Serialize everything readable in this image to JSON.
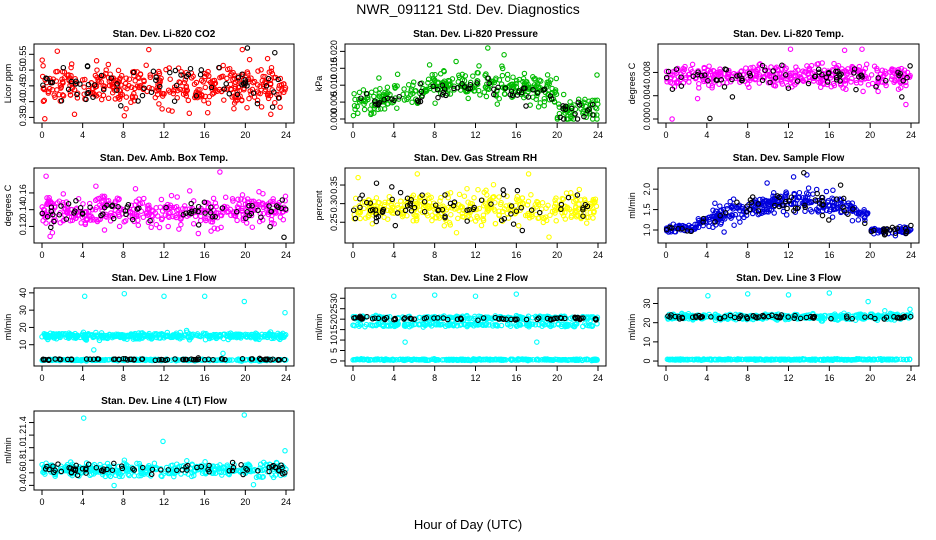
{
  "title": "NWR_091121  Std. Dev. Diagnostics",
  "xlabel": "Hour of Day (UTC)",
  "chart_data": [
    {
      "type": "scatter",
      "title": "Stan. Dev. Li-820 CO2",
      "ylabel": "Licor ppm",
      "xticks": [
        "0",
        "4",
        "8",
        "12",
        "16",
        "20",
        "24"
      ],
      "yticks": [
        "0.35",
        "0.40",
        "0.45",
        "0.50",
        "0.55"
      ],
      "xlim": [
        0,
        24
      ],
      "ylim": [
        0.345,
        0.57
      ],
      "series": [
        {
          "color": "#ff0000",
          "kind": "band",
          "center": 0.45,
          "spread": 0.04,
          "n": 380,
          "outliers": [
            [
              1.5,
              0.56
            ],
            [
              3.2,
              0.36
            ],
            [
              8.1,
              0.355
            ],
            [
              10.5,
              0.565
            ],
            [
              12.8,
              0.37
            ],
            [
              16.3,
              0.365
            ],
            [
              19.7,
              0.565
            ],
            [
              22.5,
              0.36
            ]
          ]
        },
        {
          "color": "#000000",
          "kind": "band",
          "center": 0.45,
          "spread": 0.035,
          "n": 70,
          "outliers": [
            [
              20.2,
              0.57
            ],
            [
              22.9,
              0.555
            ]
          ]
        }
      ]
    },
    {
      "type": "scatter",
      "title": "Stan. Dev. Li-820 Pressure",
      "ylabel": "kPa",
      "xticks": [
        "0",
        "4",
        "8",
        "12",
        "16",
        "20",
        "24"
      ],
      "yticks": [
        "0.000",
        "0.005",
        "0.010",
        "0.015",
        "0.020"
      ],
      "xlim": [
        0,
        24
      ],
      "ylim": [
        0,
        0.021
      ],
      "series": [
        {
          "color": "#00bb00",
          "kind": "hump",
          "base": 0.004,
          "peak": 0.0105,
          "center": 13,
          "width": 9,
          "spread": 0.0028,
          "n": 380,
          "outliers": [
            [
              7.5,
              0.016
            ],
            [
              13.2,
              0.021
            ],
            [
              14.8,
              0.019
            ],
            [
              23.9,
              0.013
            ],
            [
              10.1,
              0.017
            ]
          ]
        },
        {
          "color": "#000000",
          "kind": "hump",
          "base": 0.004,
          "peak": 0.0095,
          "center": 13,
          "width": 9,
          "spread": 0.0022,
          "n": 70,
          "outliers": [
            [
              20.3,
              0.0005
            ],
            [
              23.5,
              0.0012
            ]
          ]
        }
      ]
    },
    {
      "type": "scatter",
      "title": "Stan. Dev. Li-820 Temp.",
      "ylabel": "degrees C",
      "xticks": [
        "0",
        "4",
        "8",
        "12",
        "16",
        "20",
        "24"
      ],
      "yticks": [
        "0.000",
        "0.004",
        "0.008"
      ],
      "xlim": [
        0,
        24
      ],
      "ylim": [
        0,
        0.0122
      ],
      "series": [
        {
          "color": "#ff00ff",
          "kind": "band",
          "center": 0.0073,
          "spread": 0.0013,
          "n": 380,
          "outliers": [
            [
              0.6,
              0.0
            ],
            [
              3.1,
              0.0035
            ],
            [
              12.2,
              0.012
            ],
            [
              17.5,
              0.0118
            ],
            [
              19.2,
              0.012
            ],
            [
              23.5,
              0.0025
            ]
          ]
        },
        {
          "color": "#000000",
          "kind": "band",
          "center": 0.0072,
          "spread": 0.0012,
          "n": 70,
          "outliers": [
            [
              4.3,
              0.0001
            ],
            [
              6.5,
              0.0038
            ],
            [
              23.1,
              0.0038
            ]
          ]
        }
      ]
    },
    {
      "type": "scatter",
      "title": "Stan. Dev. Amb. Box Temp.",
      "ylabel": "degrees C",
      "xticks": [
        "0",
        "4",
        "8",
        "12",
        "16",
        "20",
        "24"
      ],
      "yticks": [
        "0.12",
        "0.14",
        "0.16"
      ],
      "xlim": [
        0,
        24
      ],
      "ylim": [
        0.105,
        0.185
      ],
      "series": [
        {
          "color": "#ff00ff",
          "kind": "band",
          "center": 0.138,
          "spread": 0.012,
          "n": 380,
          "outliers": [
            [
              0.4,
              0.18
            ],
            [
              17.5,
              0.185
            ],
            [
              9.2,
              0.165
            ],
            [
              5.3,
              0.168
            ]
          ]
        },
        {
          "color": "#000000",
          "kind": "band",
          "center": 0.137,
          "spread": 0.01,
          "n": 70,
          "outliers": [
            [
              23.8,
              0.107
            ]
          ]
        }
      ]
    },
    {
      "type": "scatter",
      "title": "Stan. Dev. Gas Stream RH",
      "ylabel": "percent",
      "xticks": [
        "0",
        "4",
        "8",
        "12",
        "16",
        "20",
        "24"
      ],
      "yticks": [
        "0.25",
        "0.30",
        "0.35"
      ],
      "xlim": [
        0,
        24
      ],
      "ylim": [
        0.205,
        0.385
      ],
      "series": [
        {
          "color": "#ffff00",
          "kind": "band",
          "center": 0.285,
          "spread": 0.028,
          "n": 380,
          "outliers": [
            [
              6.3,
              0.38
            ],
            [
              17.2,
              0.38
            ],
            [
              0.5,
              0.37
            ],
            [
              19.2,
              0.21
            ]
          ]
        },
        {
          "color": "#000000",
          "kind": "band",
          "center": 0.29,
          "spread": 0.025,
          "n": 70,
          "outliers": [
            [
              2.3,
              0.355
            ],
            [
              3.8,
              0.345
            ],
            [
              16.1,
              0.335
            ]
          ]
        }
      ]
    },
    {
      "type": "scatter",
      "title": "Stan. Dev. Sample Flow",
      "ylabel": "ml/min",
      "xticks": [
        "0",
        "4",
        "8",
        "12",
        "16",
        "20",
        "24"
      ],
      "yticks": [
        "1.0",
        "1.5",
        "2.0"
      ],
      "xlim": [
        0,
        24
      ],
      "ylim": [
        0.78,
        2.42
      ],
      "series": [
        {
          "color": "#0000dd",
          "kind": "flow",
          "n": 380,
          "outliers": [
            [
              13.8,
              2.35
            ],
            [
              12.5,
              2.3
            ],
            [
              9.9,
              2.15
            ]
          ]
        },
        {
          "color": "#000000",
          "kind": "flow",
          "n": 70,
          "outliers": [
            [
              13.5,
              2.4
            ],
            [
              17.1,
              2.1
            ]
          ]
        }
      ]
    },
    {
      "type": "scatter",
      "title": "Stan. Dev. Line 1 Flow",
      "ylabel": "ml/min",
      "xticks": [
        "0",
        "4",
        "8",
        "12",
        "16",
        "20",
        "24"
      ],
      "yticks": [
        "10",
        "20",
        "30",
        "40"
      ],
      "xlim": [
        0,
        24
      ],
      "ylim": [
        0,
        40.5
      ],
      "series": [
        {
          "color": "#00ffff",
          "kind": "band",
          "center": 15,
          "spread": 1.2,
          "n": 400,
          "outliers": [
            [
              4.2,
              38
            ],
            [
              8.1,
              39.5
            ],
            [
              12.0,
              38
            ],
            [
              16.0,
              38
            ],
            [
              19.9,
              35
            ],
            [
              23.9,
              28.5
            ],
            [
              5.1,
              7
            ],
            [
              17.8,
              5
            ]
          ]
        },
        {
          "color": "#00ffff",
          "kind": "band",
          "center": 1.2,
          "spread": 0.3,
          "n": 300,
          "outliers": []
        },
        {
          "color": "#000000",
          "kind": "band",
          "center": 1.5,
          "spread": 0.3,
          "n": 70,
          "outliers": []
        }
      ]
    },
    {
      "type": "scatter",
      "title": "Stan. Dev. Line 2 Flow",
      "ylabel": "ml/min",
      "xticks": [
        "0",
        "4",
        "8",
        "12",
        "16",
        "20",
        "24"
      ],
      "yticks": [
        "0",
        "5",
        "10",
        "15",
        "20",
        "25",
        "30"
      ],
      "xlim": [
        0,
        24
      ],
      "ylim": [
        -0.5,
        33
      ],
      "series": [
        {
          "color": "#00ffff",
          "kind": "twin",
          "center": 19.5,
          "spread": 2.2,
          "n": 400,
          "outliers": [
            [
              4.0,
              31
            ],
            [
              8.0,
              31.5
            ],
            [
              12.0,
              31
            ],
            [
              16.0,
              32
            ],
            [
              5.1,
              9
            ],
            [
              18.0,
              9
            ]
          ]
        },
        {
          "color": "#00ffff",
          "kind": "band",
          "center": 0.6,
          "spread": 0.2,
          "n": 300,
          "outliers": []
        },
        {
          "color": "#000000",
          "kind": "band",
          "center": 20.2,
          "spread": 0.6,
          "n": 70,
          "outliers": []
        }
      ]
    },
    {
      "type": "scatter",
      "title": "Stan. Dev. Line 3 Flow",
      "ylabel": "ml/min",
      "xticks": [
        "0",
        "4",
        "8",
        "12",
        "16",
        "20",
        "24"
      ],
      "yticks": [
        "0",
        "10",
        "20",
        "30"
      ],
      "xlim": [
        0,
        24
      ],
      "ylim": [
        -0.5,
        36
      ],
      "series": [
        {
          "color": "#00ffff",
          "kind": "band",
          "center": 23,
          "spread": 1.0,
          "n": 400,
          "outliers": [
            [
              4.1,
              34
            ],
            [
              8.0,
              35
            ],
            [
              12.0,
              34.5
            ],
            [
              16.0,
              35.5
            ],
            [
              19.8,
              31
            ],
            [
              23.9,
              27
            ]
          ]
        },
        {
          "color": "#00ffff",
          "kind": "band",
          "center": 0.8,
          "spread": 0.2,
          "n": 300,
          "outliers": []
        },
        {
          "color": "#000000",
          "kind": "band",
          "center": 23,
          "spread": 0.8,
          "n": 70,
          "outliers": []
        }
      ]
    },
    {
      "type": "scatter",
      "title": "Stan. Dev. Line 4 (LT) Flow",
      "ylabel": "ml/min",
      "xticks": [
        "0",
        "4",
        "8",
        "12",
        "16",
        "20",
        "24"
      ],
      "yticks": [
        "0.4",
        "0.6",
        "0.8",
        "1.0",
        "1.2",
        "1.4"
      ],
      "xlim": [
        0,
        24
      ],
      "ylim": [
        0.39,
        1.52
      ],
      "series": [
        {
          "color": "#00ffff",
          "kind": "band",
          "center": 0.65,
          "spread": 0.07,
          "n": 380,
          "outliers": [
            [
              4.1,
              1.47
            ],
            [
              11.9,
              1.1
            ],
            [
              19.9,
              1.52
            ],
            [
              23.9,
              0.95
            ],
            [
              20.8,
              0.41
            ]
          ]
        },
        {
          "color": "#000000",
          "kind": "band",
          "center": 0.66,
          "spread": 0.06,
          "n": 70,
          "outliers": []
        }
      ]
    }
  ]
}
